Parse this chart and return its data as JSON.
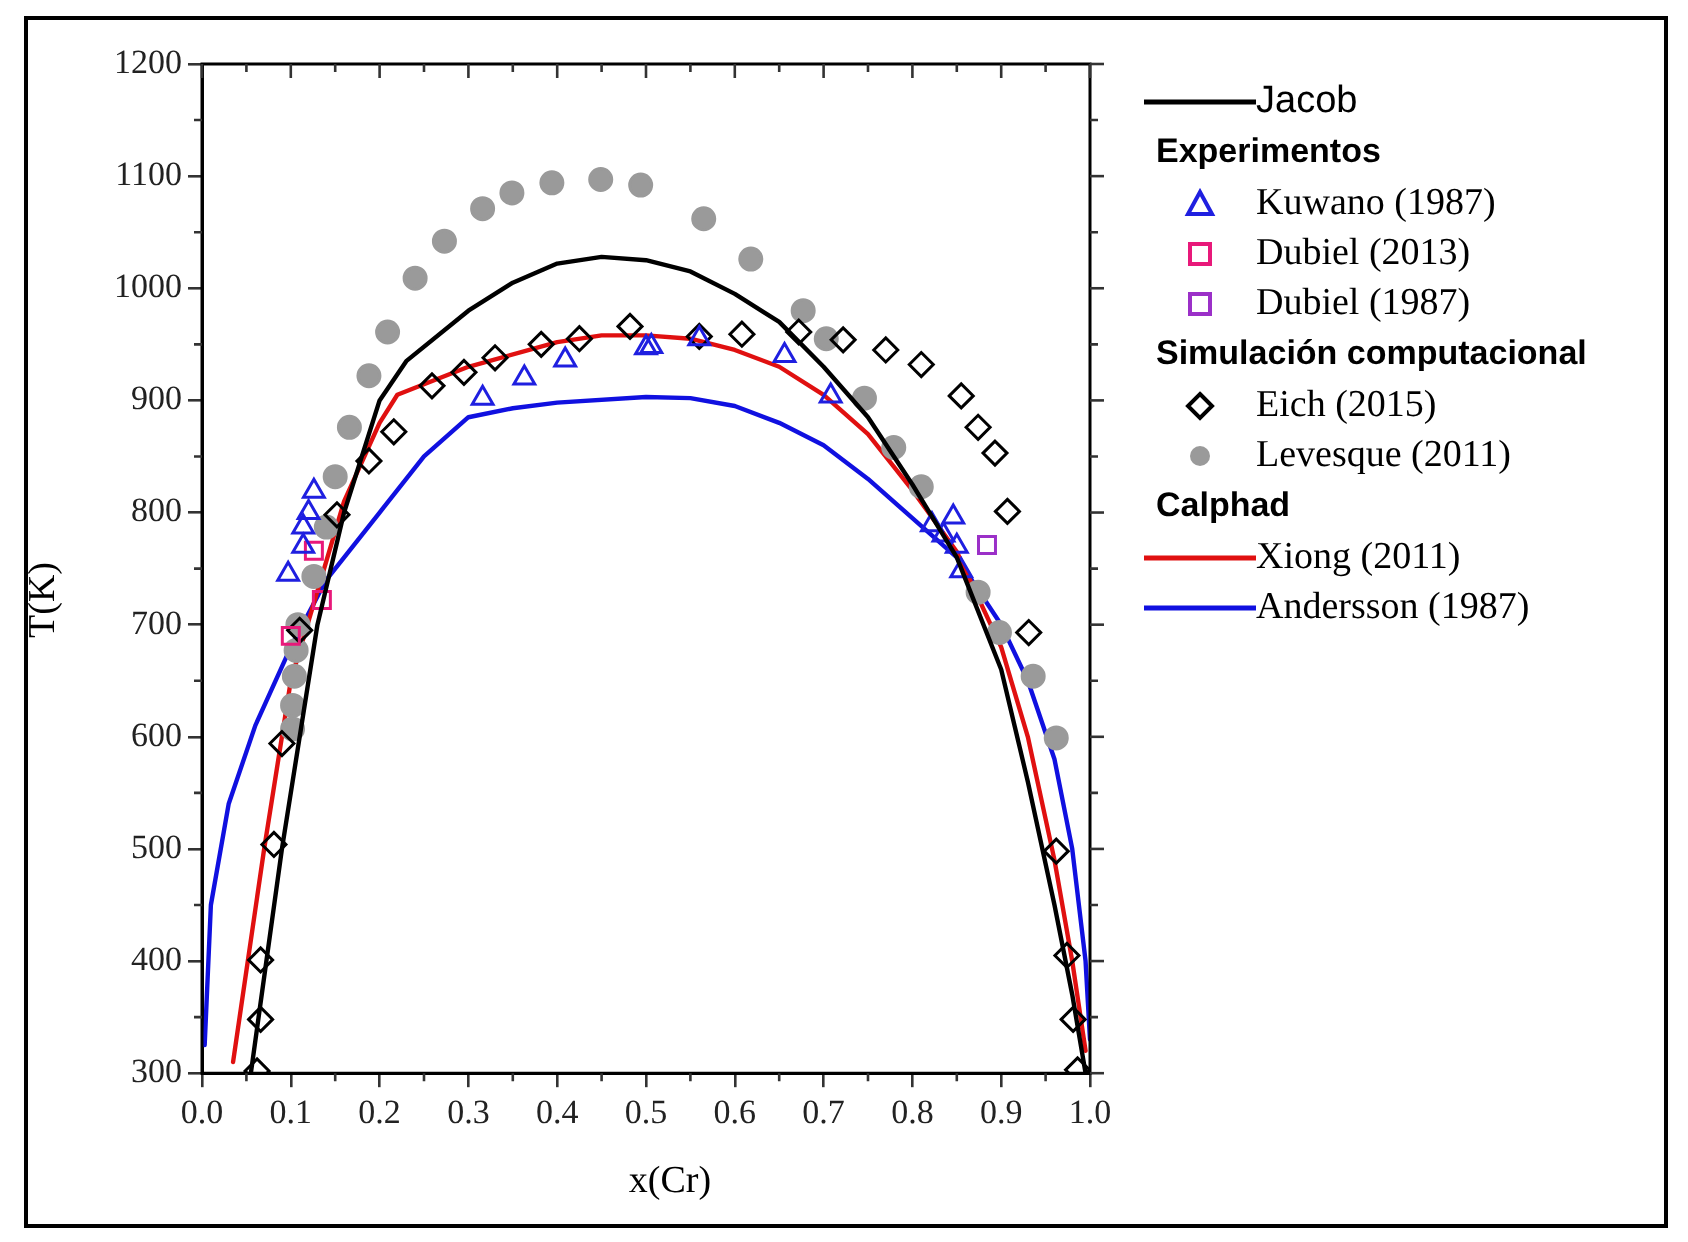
{
  "chart_data": {
    "type": "line",
    "xlabel": "x(Cr)",
    "ylabel": "T(K)",
    "xlim": [
      0,
      1
    ],
    "ylim": [
      300,
      1200
    ],
    "xticks": [
      {
        "value": 0,
        "label": "0.0"
      },
      0.1,
      0.2,
      0.3,
      0.4,
      0.5,
      0.6,
      0.7,
      0.8,
      0.9,
      {
        "value": 1,
        "label": "1.0"
      }
    ],
    "yticks": [
      300,
      400,
      500,
      600,
      700,
      800,
      900,
      1000,
      1100,
      1200
    ],
    "grid": false,
    "legend": "right",
    "annotations": [
      "Experimentos",
      "Simulación computacional",
      "Calphad"
    ],
    "series": [
      {
        "name": "Jacob",
        "marker": "none",
        "color": "#000000",
        "x": [
          0.055,
          0.09,
          0.13,
          0.16,
          0.2,
          0.23,
          0.3,
          0.35,
          0.4,
          0.45,
          0.5,
          0.55,
          0.6,
          0.65,
          0.7,
          0.75,
          0.8,
          0.85,
          0.9,
          0.93,
          0.96,
          0.98,
          0.995
        ],
        "values": [
          300,
          500,
          700,
          800,
          900,
          935,
          980,
          1005,
          1022,
          1028,
          1025,
          1015,
          995,
          970,
          930,
          885,
          825,
          760,
          660,
          560,
          450,
          370,
          300
        ]
      },
      {
        "name": "Kuwano (1987)",
        "type": "scatter",
        "marker": "triangle",
        "color": "#1f1fe0",
        "x": [
          0.097,
          0.114,
          0.126,
          0.114,
          0.12,
          0.316,
          0.363,
          0.409,
          0.5,
          0.506,
          0.56,
          0.656,
          0.708,
          0.822,
          0.846,
          0.835,
          0.85,
          0.855
        ],
        "values": [
          745,
          787,
          819,
          770,
          800,
          902,
          920,
          936,
          947,
          948,
          955,
          940,
          904,
          789,
          796,
          780,
          770,
          748
        ]
      },
      {
        "name": "Dubiel (2013)",
        "type": "scatter",
        "marker": "square",
        "color": "#e8197a",
        "x": [
          0.1,
          0.126,
          0.135
        ],
        "values": [
          690,
          766,
          722
        ]
      },
      {
        "name": "Dubiel (1987)",
        "type": "scatter",
        "marker": "square",
        "color": "#9b30c8",
        "x": [
          0.884
        ],
        "values": [
          771
        ]
      },
      {
        "name": "Eich (2015)",
        "type": "scatter",
        "marker": "diamond",
        "color": "#000000",
        "x": [
          0.062,
          0.066,
          0.066,
          0.081,
          0.09,
          0.11,
          0.152,
          0.188,
          0.216,
          0.259,
          0.295,
          0.33,
          0.382,
          0.425,
          0.482,
          0.56,
          0.608,
          0.672,
          0.722,
          0.77,
          0.81,
          0.855,
          0.874,
          0.893,
          0.907,
          0.931,
          0.962,
          0.974,
          0.981,
          0.986
        ],
        "values": [
          302,
          348,
          401,
          504,
          594,
          695,
          798,
          846,
          872,
          913,
          925,
          938,
          950,
          955,
          966,
          957,
          959,
          961,
          954,
          945,
          932,
          904,
          876,
          853,
          801,
          693,
          498,
          405,
          348,
          303
        ]
      },
      {
        "name": "Levesque (2011)",
        "type": "scatter",
        "marker": "circle",
        "color": "#9a9a9a",
        "x": [
          0.102,
          0.102,
          0.104,
          0.106,
          0.108,
          0.126,
          0.14,
          0.15,
          0.166,
          0.188,
          0.209,
          0.24,
          0.273,
          0.316,
          0.349,
          0.394,
          0.449,
          0.494,
          0.565,
          0.618,
          0.677,
          0.703,
          0.746,
          0.779,
          0.81,
          0.838,
          0.874,
          0.898,
          0.936,
          0.962
        ],
        "values": [
          607,
          628,
          654,
          677,
          700,
          743,
          787,
          832,
          876,
          922,
          961,
          1009,
          1042,
          1071,
          1085,
          1094,
          1097,
          1092,
          1062,
          1026,
          980,
          955,
          902,
          858,
          823,
          null,
          729,
          693,
          654,
          599
        ]
      },
      {
        "name": "Xiong (2011)",
        "marker": "none",
        "color": "#e01010",
        "x": [
          0.035,
          0.07,
          0.1,
          0.13,
          0.16,
          0.2,
          0.22,
          0.3,
          0.4,
          0.45,
          0.5,
          0.55,
          0.6,
          0.65,
          0.7,
          0.75,
          0.8,
          0.85,
          0.9,
          0.93,
          0.96,
          0.98,
          0.995
        ],
        "values": [
          310,
          500,
          650,
          730,
          810,
          880,
          905,
          930,
          952,
          958,
          958,
          955,
          945,
          930,
          905,
          870,
          820,
          765,
          680,
          600,
          490,
          400,
          320
        ]
      },
      {
        "name": "Andersson (1987)",
        "marker": "none",
        "color": "#1010e0",
        "x": [
          0.003,
          0.01,
          0.03,
          0.06,
          0.1,
          0.14,
          0.2,
          0.25,
          0.3,
          0.35,
          0.4,
          0.5,
          0.55,
          0.6,
          0.65,
          0.7,
          0.75,
          0.8,
          0.85,
          0.9,
          0.93,
          0.96,
          0.98,
          0.995,
          1.0
        ],
        "values": [
          325,
          450,
          540,
          610,
          680,
          740,
          800,
          850,
          885,
          893,
          898,
          903,
          902,
          895,
          880,
          860,
          830,
          795,
          760,
          700,
          650,
          580,
          500,
          400,
          330
        ]
      }
    ]
  }
}
